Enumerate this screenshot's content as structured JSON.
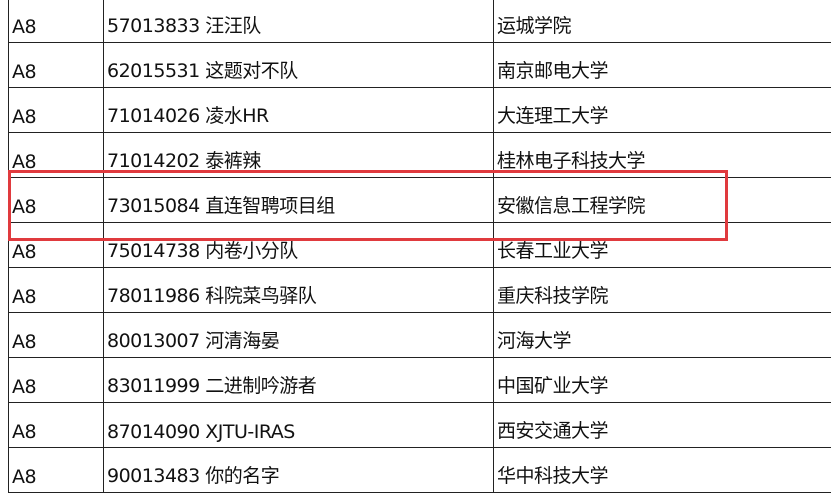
{
  "table": {
    "rows": [
      [
        "A8",
        "57013833 汪汪队",
        "运城学院"
      ],
      [
        "A8",
        "62015531 这题对不队",
        "南京邮电大学"
      ],
      [
        "A8",
        "71014026 凌水HR",
        "大连理工大学"
      ],
      [
        "A8",
        "71014202 泰裤辣",
        "桂林电子科技大学"
      ],
      [
        "A8",
        "73015084 直连智聘项目组",
        "安徽信息工程学院"
      ],
      [
        "A8",
        "75014738 内卷小分队",
        "长春工业大学"
      ],
      [
        "A8",
        "78011986 科院菜鸟驿队",
        "重庆科技学院"
      ],
      [
        "A8",
        "80013007 河清海晏",
        "河海大学"
      ],
      [
        "A8",
        "83011999 二进制吟游者",
        "中国矿业大学"
      ],
      [
        "A8",
        "87014090 XJTU-IRAS",
        "西安交通大学"
      ],
      [
        "A8",
        "90013483 你的名字",
        "华中科技大学"
      ]
    ]
  }
}
